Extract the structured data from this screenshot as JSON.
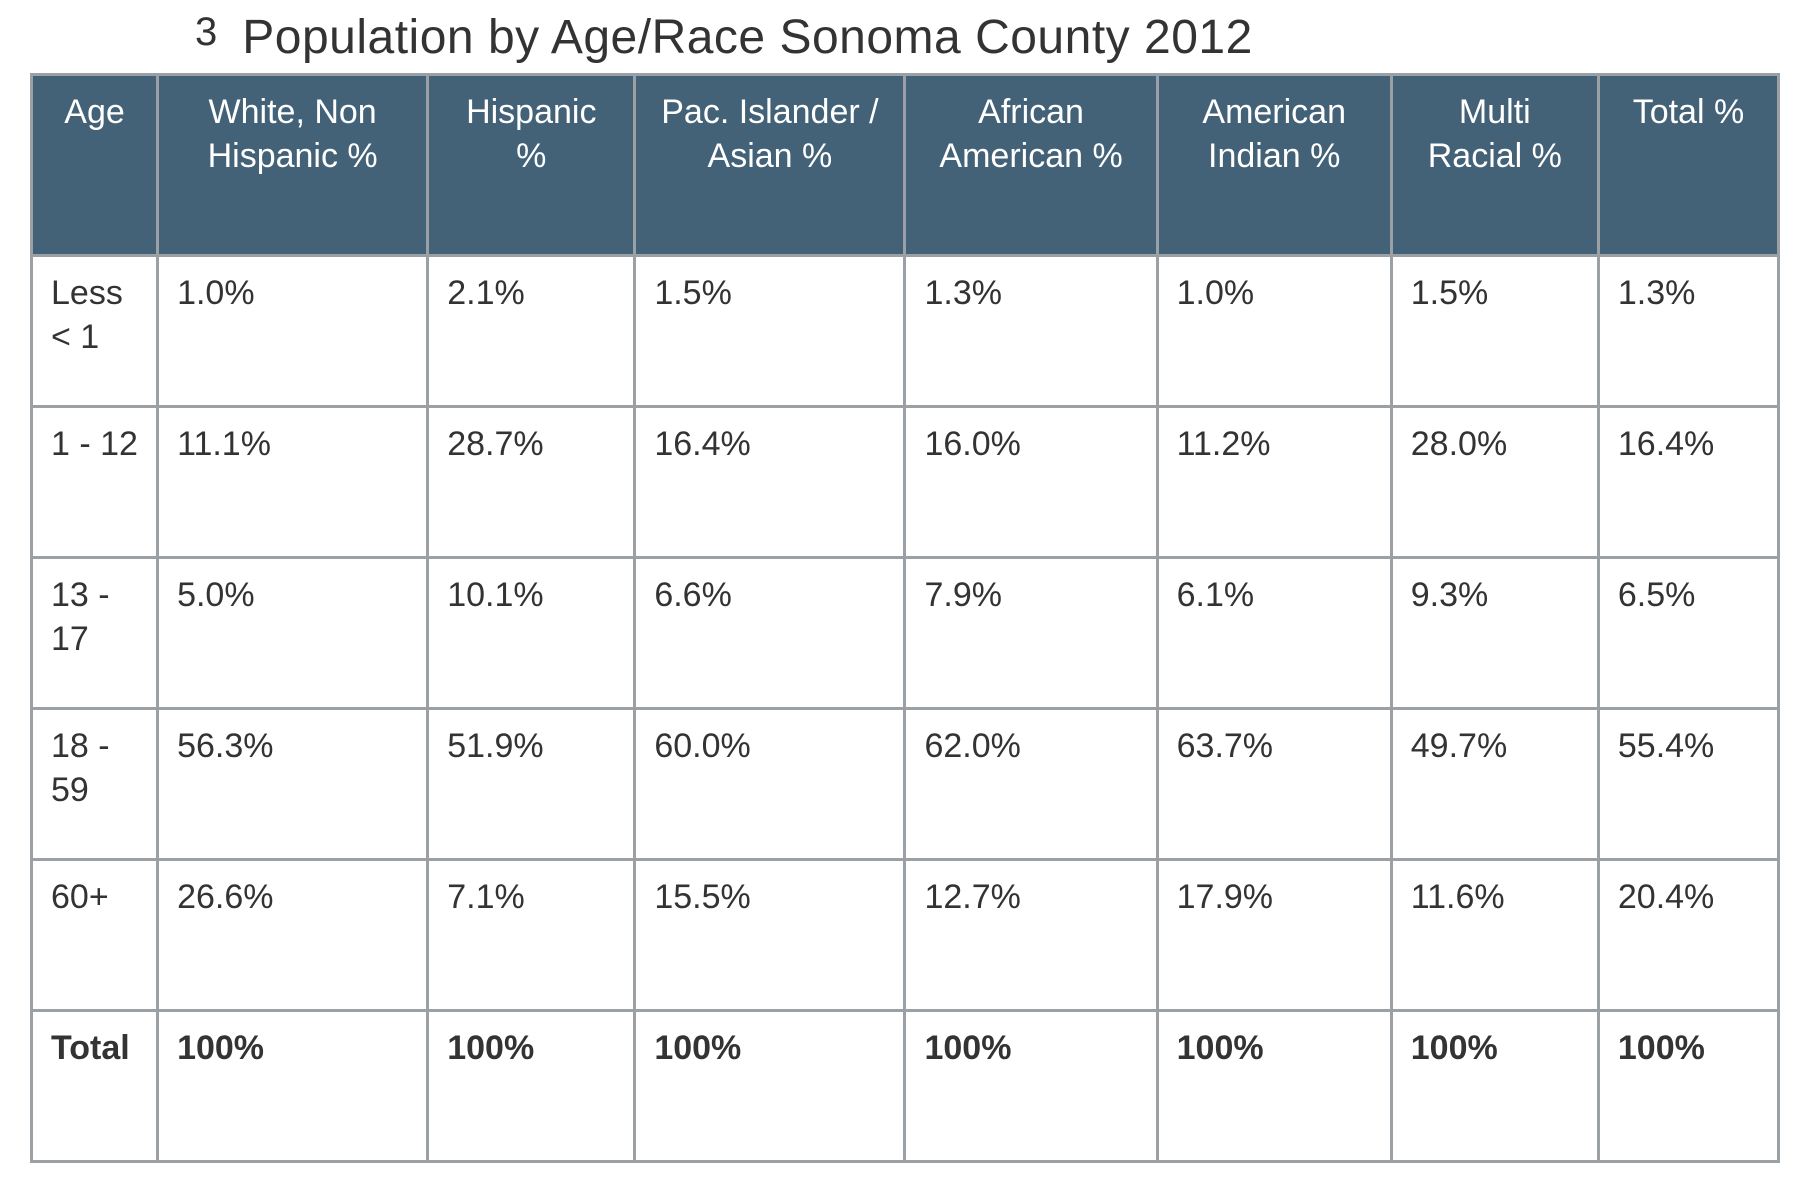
{
  "title": {
    "footnote_mark": "3",
    "text": "Population by Age/Race Sonoma County 2012"
  },
  "table": {
    "type": "table",
    "header_bg": "#436277",
    "header_text_color": "#ffffff",
    "border_color": "#9aa0a4",
    "cell_bg": "#ffffff",
    "cell_text_color": "#333333",
    "header_fontsize": 34,
    "cell_fontsize": 34,
    "columns": [
      {
        "label": "Age",
        "width_pct": 7
      },
      {
        "label": "White, Non Hispanic %",
        "width_pct": 15
      },
      {
        "label": "Hispanic %",
        "width_pct": 11.5
      },
      {
        "label": "Pac. Islander / Asian %",
        "width_pct": 15
      },
      {
        "label": "African American %",
        "width_pct": 14
      },
      {
        "label": "American Indian %",
        "width_pct": 13
      },
      {
        "label": "Multi Racial %",
        "width_pct": 11.5
      },
      {
        "label": "Total %",
        "width_pct": 10
      }
    ],
    "rows": [
      {
        "age": "Less < 1",
        "cells": [
          "1.0%",
          "2.1%",
          "1.5%",
          "1.3%",
          "1.0%",
          "1.5%",
          "1.3%"
        ]
      },
      {
        "age": "1 - 12",
        "cells": [
          "11.1%",
          "28.7%",
          "16.4%",
          "16.0%",
          "11.2%",
          "28.0%",
          "16.4%"
        ]
      },
      {
        "age": "13 - 17",
        "cells": [
          "5.0%",
          "10.1%",
          "6.6%",
          "7.9%",
          "6.1%",
          "9.3%",
          "6.5%"
        ]
      },
      {
        "age": "18 - 59",
        "cells": [
          "56.3%",
          "51.9%",
          "60.0%",
          "62.0%",
          "63.7%",
          "49.7%",
          "55.4%"
        ]
      },
      {
        "age": "60+",
        "cells": [
          "26.6%",
          "7.1%",
          "15.5%",
          "12.7%",
          "17.9%",
          "11.6%",
          "20.4%"
        ]
      }
    ],
    "total_row": {
      "label": "Total",
      "cells": [
        "100%",
        "100%",
        "100%",
        "100%",
        "100%",
        "100%",
        "100%"
      ]
    }
  }
}
